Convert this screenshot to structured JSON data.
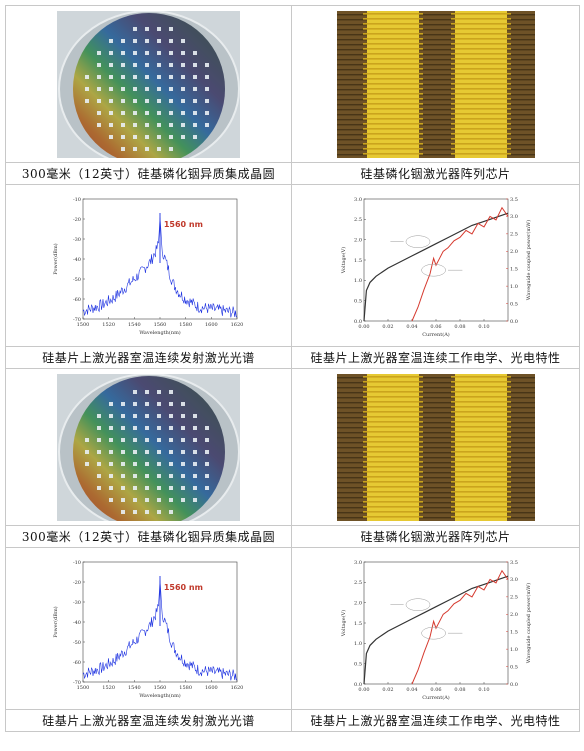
{
  "captions": {
    "wafer": "300毫米（12英寸）硅基磷化铟异质集成晶圆",
    "chip": "硅基磷化铟激光器阵列芯片",
    "spectrum": "硅基片上激光器室温连续发射激光光谱",
    "liv": "硅基片上激光器室温连续工作电学、光电特性"
  },
  "chart_data": [
    {
      "type": "line",
      "annotation": "1560 nm",
      "xlabel": "Wavelength(nm)",
      "ylabel": "Power(dBm)",
      "xlim": [
        1500,
        1620
      ],
      "ylim": [
        -70,
        -10
      ],
      "x_ticks": [
        "1500",
        "1520",
        "1540",
        "1560",
        "1580",
        "1600",
        "1620"
      ],
      "y_ticks": [
        "-10",
        "-20",
        "-30",
        "-40",
        "-50",
        "-60",
        "-70"
      ],
      "series": [
        {
          "color": "#1a2fe0",
          "x": [
            1500,
            1505,
            1510,
            1515,
            1520,
            1525,
            1530,
            1535,
            1540,
            1545,
            1550,
            1553,
            1555,
            1557,
            1558,
            1559,
            1560,
            1561,
            1562,
            1563,
            1565,
            1568,
            1570,
            1575,
            1580,
            1585,
            1590,
            1600,
            1610,
            1620
          ],
          "y": [
            -66,
            -65,
            -64,
            -63,
            -61,
            -59,
            -56,
            -53,
            -50,
            -47,
            -43,
            -41,
            -38,
            -36,
            -34,
            -32,
            -17,
            -33,
            -36,
            -38,
            -42,
            -48,
            -52,
            -57,
            -60,
            -62,
            -64,
            -65,
            -66,
            -67
          ]
        }
      ]
    },
    {
      "type": "line",
      "xlabel": "Current(A)",
      "ylabel": "Voltage(V)",
      "y2label": "Waveguide coupled power(mW)",
      "xlim": [
        0,
        0.12
      ],
      "ylim": [
        0,
        3.0
      ],
      "y2lim": [
        0,
        3.5
      ],
      "x_ticks": [
        "0.00",
        "0.02",
        "0.04",
        "0.06",
        "0.08",
        "0.10"
      ],
      "y_ticks": [
        "0.0",
        "0.5",
        "1.0",
        "1.5",
        "2.0",
        "2.5",
        "3.0"
      ],
      "y2_ticks": [
        "0.0",
        "0.5",
        "1.0",
        "1.5",
        "2.0",
        "2.5",
        "3.0",
        "3.5"
      ],
      "series": [
        {
          "color": "#333333",
          "axis": "left",
          "x": [
            0.0,
            0.002,
            0.005,
            0.01,
            0.02,
            0.03,
            0.04,
            0.05,
            0.06,
            0.07,
            0.08,
            0.09,
            0.1,
            0.11,
            0.12
          ],
          "y": [
            0.0,
            0.75,
            0.95,
            1.1,
            1.3,
            1.45,
            1.6,
            1.75,
            1.9,
            2.05,
            2.2,
            2.35,
            2.45,
            2.55,
            2.65
          ]
        },
        {
          "color": "#d63a2f",
          "axis": "right",
          "x": [
            0.04,
            0.045,
            0.05,
            0.055,
            0.058,
            0.06,
            0.063,
            0.066,
            0.07,
            0.075,
            0.08,
            0.085,
            0.09,
            0.095,
            0.1,
            0.105,
            0.11,
            0.115,
            0.12
          ],
          "y": [
            0.0,
            0.4,
            0.9,
            1.35,
            1.8,
            1.6,
            1.8,
            2.0,
            2.1,
            2.3,
            2.4,
            2.6,
            2.5,
            2.8,
            2.7,
            3.0,
            2.9,
            3.25,
            3.0
          ]
        }
      ]
    }
  ]
}
